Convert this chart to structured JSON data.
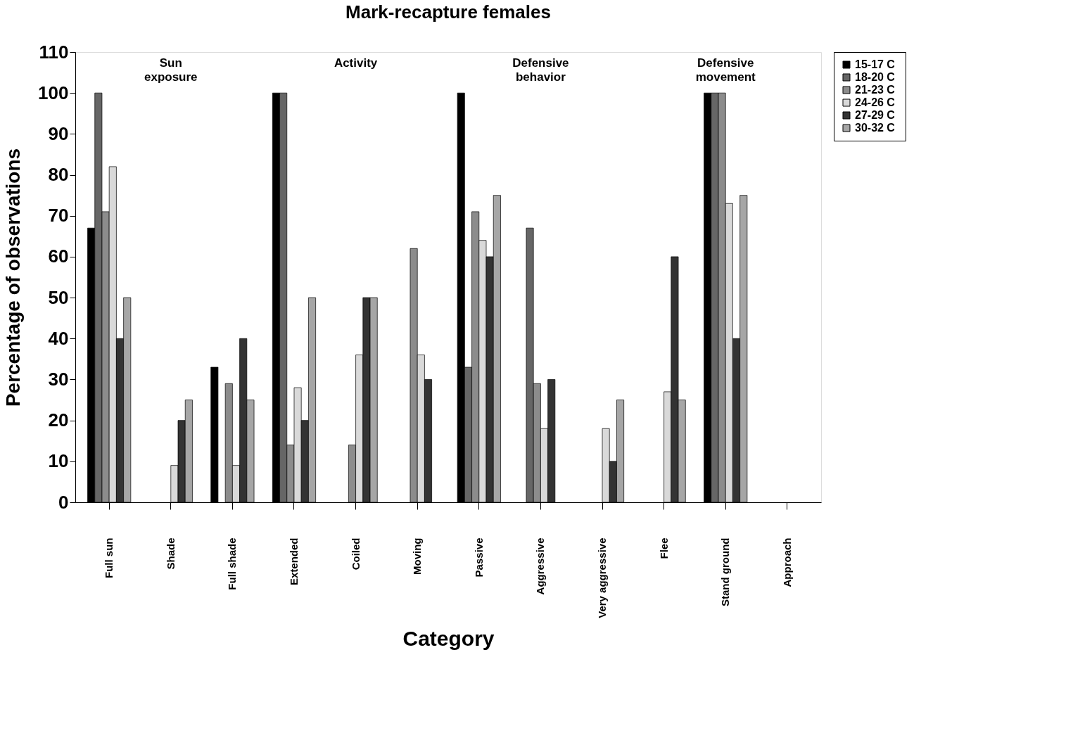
{
  "chart_data": {
    "type": "bar",
    "title": "Mark-recapture females",
    "xlabel": "Category",
    "ylabel": "Percentage of observations",
    "categories": [
      "Full sun",
      "Shade",
      "Full shade",
      "Extended",
      "Coiled",
      "Moving",
      "Passive",
      "Aggressive",
      "Very aggressive",
      "Flee",
      "Stand ground",
      "Approach"
    ],
    "series": [
      {
        "name": "15-17  C",
        "color": "#000000",
        "values": [
          67,
          0,
          33,
          100,
          0,
          0,
          100,
          0,
          0,
          0,
          100,
          0
        ]
      },
      {
        "name": "18-20  C",
        "color": "#666666",
        "values": [
          100,
          0,
          0,
          100,
          0,
          0,
          33,
          67,
          0,
          0,
          100,
          0
        ]
      },
      {
        "name": "21-23  C",
        "color": "#8c8c8c",
        "values": [
          71,
          0,
          29,
          14,
          14,
          62,
          71,
          29,
          0,
          0,
          100,
          0
        ]
      },
      {
        "name": "24-26  C",
        "color": "#d9d9d9",
        "values": [
          82,
          9,
          9,
          28,
          36,
          36,
          64,
          18,
          18,
          27,
          73,
          0
        ]
      },
      {
        "name": "27-29  C",
        "color": "#333333",
        "values": [
          40,
          20,
          40,
          20,
          50,
          30,
          60,
          30,
          10,
          60,
          40,
          0
        ]
      },
      {
        "name": "30-32  C",
        "color": "#a6a6a6",
        "values": [
          50,
          25,
          25,
          50,
          50,
          0,
          75,
          0,
          25,
          25,
          75,
          0
        ]
      }
    ],
    "annotations": [
      "Sun\nexposure",
      "Activity",
      "Defensive\nbehavior",
      "Defensive\nmovement"
    ],
    "ylim": [
      0,
      110
    ],
    "yticks": [
      0,
      10,
      20,
      30,
      40,
      50,
      60,
      70,
      80,
      90,
      100,
      110
    ],
    "grid": false,
    "legend": "right"
  }
}
